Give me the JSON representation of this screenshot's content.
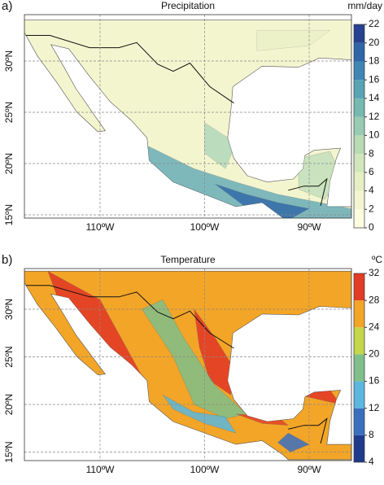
{
  "panels": [
    {
      "label": "a)",
      "title": "Precipitation",
      "unit": "mm/day",
      "colorbar": {
        "ticks": [
          0,
          2,
          4,
          6,
          8,
          10,
          12,
          14,
          16,
          18,
          20,
          22
        ],
        "colors": [
          "#fdfde0",
          "#f3f5cf",
          "#e6efc2",
          "#d2e6bb",
          "#b8dab5",
          "#98cbb2",
          "#76b9b0",
          "#58a3b4",
          "#3f86b5",
          "#2f66a8",
          "#25418f"
        ]
      },
      "lat_ticks": [
        {
          "value": 30,
          "label": "30ºN"
        },
        {
          "value": 25,
          "label": "25ºN"
        },
        {
          "value": 20,
          "label": "20ºN"
        },
        {
          "value": 15,
          "label": "15ºN"
        }
      ],
      "lon_ticks": [
        {
          "value": -110,
          "label": "110ºW"
        },
        {
          "value": -100,
          "label": "100ºW"
        },
        {
          "value": -90,
          "label": "90ºW"
        }
      ]
    },
    {
      "label": "b)",
      "title": "Temperature",
      "unit": "ºC",
      "colorbar": {
        "ticks": [
          4,
          8,
          12,
          16,
          20,
          24,
          28,
          32
        ],
        "colors": [
          "#1f3b8c",
          "#3a6fc0",
          "#5ab7df",
          "#7fbf8a",
          "#c4d64a",
          "#f3a527",
          "#e33c26"
        ]
      },
      "lat_ticks": [
        {
          "value": 30,
          "label": "30ºN"
        },
        {
          "value": 25,
          "label": "25ºN"
        },
        {
          "value": 20,
          "label": "20ºN"
        },
        {
          "value": 15,
          "label": "15ºN"
        }
      ],
      "lon_ticks": [
        {
          "value": -110,
          "label": "110ºW"
        },
        {
          "value": -100,
          "label": "100ºW"
        },
        {
          "value": -90,
          "label": "90ºW"
        }
      ]
    }
  ]
}
